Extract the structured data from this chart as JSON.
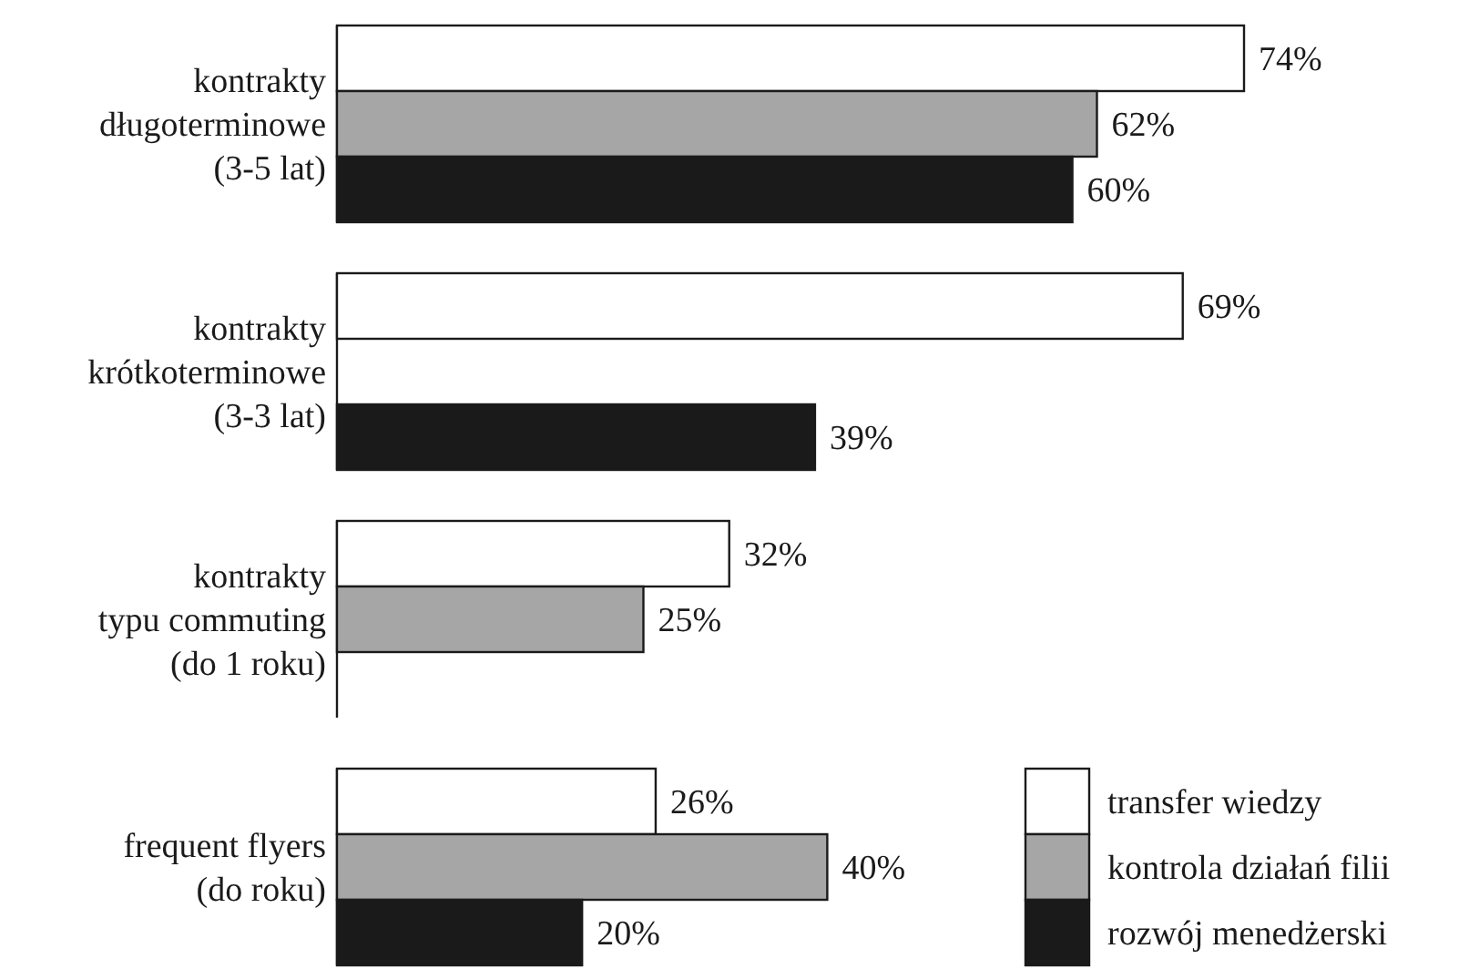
{
  "chart_data": {
    "type": "bar",
    "orientation": "horizontal",
    "categories": [
      "kontrakty\ndługoterminowe\n(3-5 lat)",
      "kontrakty\nkrótkoterminowe\n(3-3 lat)",
      "kontrakty\ntypu commuting\n(do 1 roku)",
      "frequent flyers\n(do roku)"
    ],
    "series": [
      {
        "name": "transfer wiedzy",
        "color": "#ffffff",
        "values": [
          74,
          69,
          32,
          26
        ],
        "value_labels": [
          "74%",
          "69%",
          "32%",
          "26%"
        ]
      },
      {
        "name": "kontrola działań filii",
        "color": "#a6a6a6",
        "values": [
          62,
          null,
          25,
          40
        ],
        "value_labels": [
          "62%",
          null,
          "25%",
          "40%"
        ]
      },
      {
        "name": "rozwój menedżerski",
        "color": "#1a1a1a",
        "values": [
          60,
          39,
          null,
          20
        ],
        "value_labels": [
          "60%",
          "39%",
          null,
          "20%"
        ]
      }
    ],
    "legend": "bottom right"
  }
}
